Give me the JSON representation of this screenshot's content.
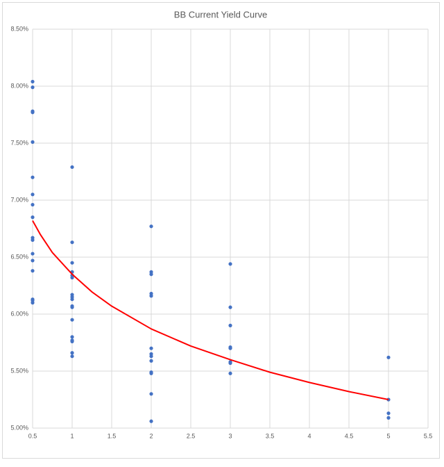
{
  "chart_data": {
    "type": "scatter",
    "title": "BB Current Yield Curve",
    "color": "#4472c4",
    "x": [
      0.5,
      0.5,
      0.5,
      0.5,
      0.5,
      0.5,
      0.5,
      0.5,
      0.5,
      0.5,
      0.5,
      0.5,
      0.5,
      0.5,
      0.5,
      0.5,
      0.5,
      1,
      1,
      1,
      1,
      1,
      1,
      1,
      1,
      1,
      1,
      1,
      1,
      1,
      1,
      1,
      1,
      1,
      2,
      2,
      2,
      2,
      2,
      2,
      2,
      2,
      2,
      2,
      2,
      2,
      2,
      3,
      3,
      3,
      3,
      3,
      3,
      3,
      3,
      5,
      5,
      5,
      5
    ],
    "values": [
      8.04,
      7.99,
      7.78,
      7.77,
      7.51,
      7.2,
      7.05,
      6.96,
      6.85,
      6.67,
      6.65,
      6.53,
      6.47,
      6.38,
      6.13,
      6.12,
      6.1,
      7.29,
      6.63,
      6.45,
      6.37,
      6.34,
      6.32,
      6.17,
      6.15,
      6.13,
      6.07,
      6.06,
      5.95,
      5.8,
      5.77,
      5.76,
      5.66,
      5.63,
      6.77,
      6.37,
      6.35,
      6.18,
      6.16,
      5.7,
      5.65,
      5.63,
      5.59,
      5.49,
      5.48,
      5.3,
      5.06,
      6.44,
      6.06,
      5.9,
      5.71,
      5.7,
      5.58,
      5.57,
      5.48,
      5.62,
      5.25,
      5.13,
      5.09
    ],
    "trendline": {
      "color": "#ff0000",
      "x": [
        0.5,
        0.6,
        0.75,
        1,
        1.25,
        1.5,
        2,
        2.5,
        3,
        3.5,
        4,
        4.5,
        5
      ],
      "values": [
        6.82,
        6.696,
        6.54,
        6.35,
        6.195,
        6.07,
        5.87,
        5.72,
        5.6,
        5.49,
        5.4,
        5.32,
        5.25
      ]
    },
    "xlim": [
      0.5,
      5.5
    ],
    "xticks": [
      0.5,
      1,
      1.5,
      2,
      2.5,
      3,
      3.5,
      4,
      4.5,
      5,
      5.5
    ],
    "ylim": [
      5.0,
      8.5
    ],
    "yticks": [
      {
        "value": 5.0,
        "label": "5.00%"
      },
      {
        "value": 5.5,
        "label": "5.50%"
      },
      {
        "value": 6.0,
        "label": "6.00%"
      },
      {
        "value": 6.5,
        "label": "6.50%"
      },
      {
        "value": 7.0,
        "label": "7.00%"
      },
      {
        "value": 7.5,
        "label": "7.50%"
      },
      {
        "value": 8.0,
        "label": "8.00%"
      },
      {
        "value": 8.5,
        "label": "8.50%"
      }
    ],
    "grid": true
  }
}
